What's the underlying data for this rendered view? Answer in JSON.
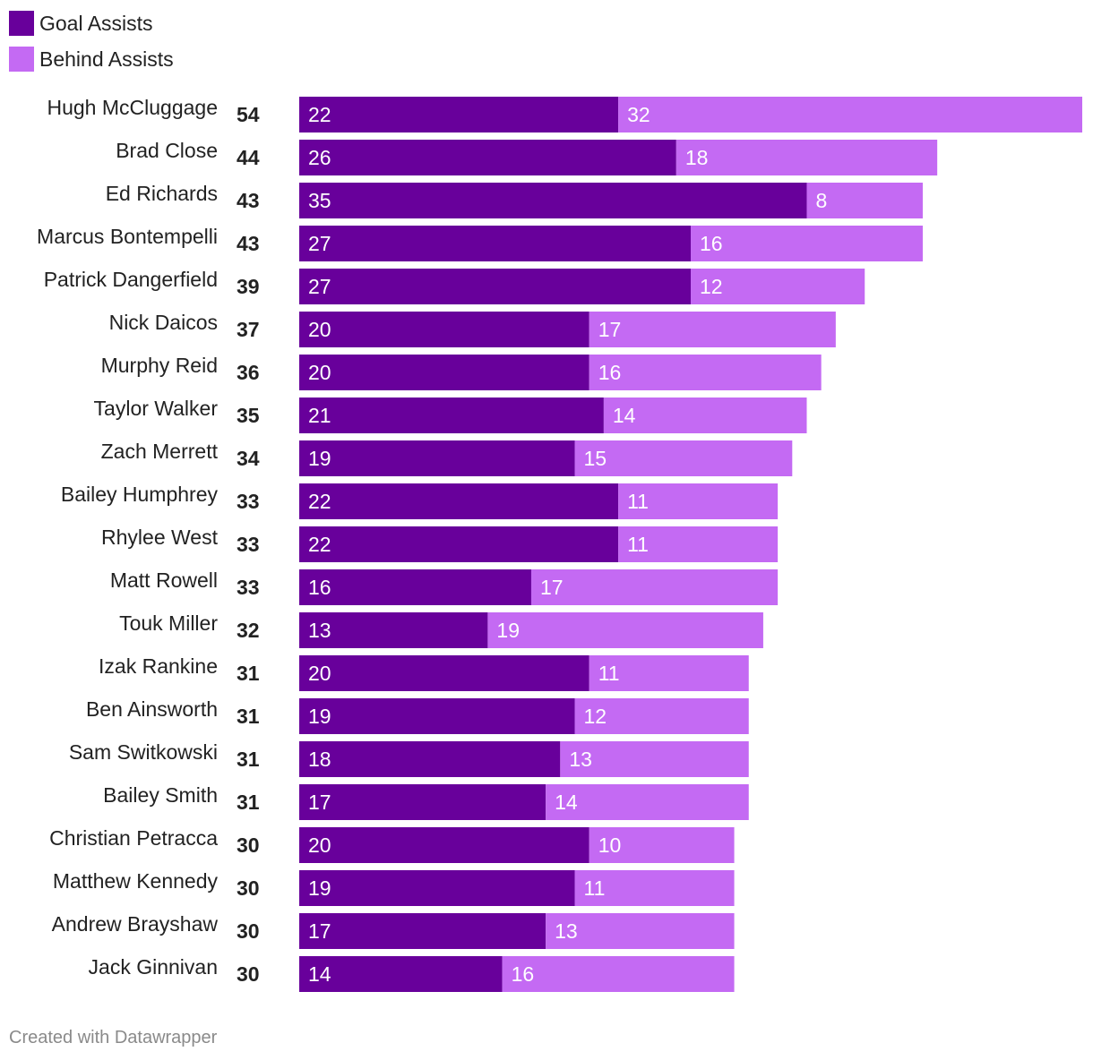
{
  "legend": {
    "goal_label": "Goal Assists",
    "behind_label": "Behind Assists"
  },
  "colors": {
    "goal": "#68009b",
    "behind": "#c46af3"
  },
  "chart_data": {
    "type": "bar",
    "orientation": "horizontal",
    "stacked": true,
    "categories": [
      "Hugh McCluggage",
      "Brad Close",
      "Ed Richards",
      "Marcus Bontempelli",
      "Patrick Dangerfield",
      "Nick Daicos",
      "Murphy Reid",
      "Taylor Walker",
      "Zach Merrett",
      "Bailey Humphrey",
      "Rhylee West",
      "Matt Rowell",
      "Touk Miller",
      "Izak Rankine",
      "Ben Ainsworth",
      "Sam Switkowski",
      "Bailey Smith",
      "Christian Petracca",
      "Matthew Kennedy",
      "Andrew Brayshaw",
      "Jack Ginnivan"
    ],
    "totals": [
      54,
      44,
      43,
      43,
      39,
      37,
      36,
      35,
      34,
      33,
      33,
      33,
      32,
      31,
      31,
      31,
      31,
      30,
      30,
      30,
      30
    ],
    "series": [
      {
        "name": "Goal Assists",
        "values": [
          22,
          26,
          35,
          27,
          27,
          20,
          20,
          21,
          19,
          22,
          22,
          16,
          13,
          20,
          19,
          18,
          17,
          20,
          19,
          17,
          14
        ]
      },
      {
        "name": "Behind Assists",
        "values": [
          32,
          18,
          8,
          16,
          12,
          17,
          16,
          14,
          15,
          11,
          11,
          17,
          19,
          11,
          12,
          13,
          14,
          10,
          11,
          13,
          16
        ]
      }
    ],
    "xlim": [
      0,
      54
    ],
    "grid": false,
    "legend_position": "top-left"
  },
  "footer": "Created with Datawrapper"
}
